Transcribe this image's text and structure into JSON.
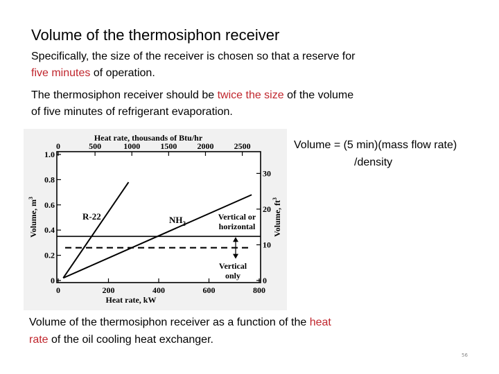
{
  "slide": {
    "title": "Volume of the thermosiphon receiver",
    "p1_a": "Specifically, the size of the receiver is chosen so that a reserve for ",
    "p1_red": "five minutes",
    "p1_b": " of operation.",
    "p2_a": "The thermosiphon receiver should be ",
    "p2_red": "twice the size",
    "p2_b": " of the volume of five minutes of refrigerant evaporation.",
    "formula_line1": "Volume = (5 min)(mass flow rate)",
    "formula_line2": "/density",
    "caption_a": "Volume of the thermosiphon receiver as a function of the ",
    "caption_red": "heat rate",
    "caption_b": " of the oil cooling heat exchanger.",
    "page_number": "56",
    "accent_color": "#c0262d"
  },
  "chart_data": {
    "type": "line",
    "title": "",
    "top_axis": {
      "label": "Heat rate, thousands of Btu/hr",
      "ticks": [
        0,
        500,
        1000,
        1500,
        2000,
        2500
      ],
      "tick_labels": [
        "0",
        "500",
        "1000",
        "1500",
        "2000",
        "2500"
      ]
    },
    "x_axis": {
      "label": "Heat rate, kW",
      "range": [
        0,
        800
      ],
      "ticks": [
        0,
        200,
        400,
        600,
        800
      ],
      "tick_labels": [
        "0",
        "200",
        "400",
        "600",
        "800"
      ]
    },
    "y_axis": {
      "label": "Volume, m",
      "label_sup": "3",
      "range": [
        0,
        1.0
      ],
      "ticks": [
        0,
        0.2,
        0.4,
        0.6,
        0.8,
        1.0
      ],
      "tick_labels": [
        "0",
        "0.2",
        "0.4",
        "0.6",
        "0.8",
        "1.0"
      ]
    },
    "right_axis": {
      "label": "Volume, ft",
      "label_sup": "3",
      "ticks": [
        0,
        10,
        20,
        30
      ],
      "tick_labels": [
        "0",
        "10",
        "20",
        "30"
      ]
    },
    "series": [
      {
        "name": "R-22",
        "x": [
          20,
          280
        ],
        "y": [
          0.02,
          0.78
        ]
      },
      {
        "name": "NH",
        "name_sub": "3",
        "x": [
          20,
          770
        ],
        "y": [
          0.02,
          0.68
        ]
      }
    ],
    "reference_lines": [
      {
        "label": "Vertical or horizontal",
        "y": 0.35,
        "style": "solid"
      },
      {
        "label": "Vertical only",
        "y": 0.26,
        "style": "dashed"
      }
    ],
    "grid": false,
    "legend": "inline labels"
  }
}
